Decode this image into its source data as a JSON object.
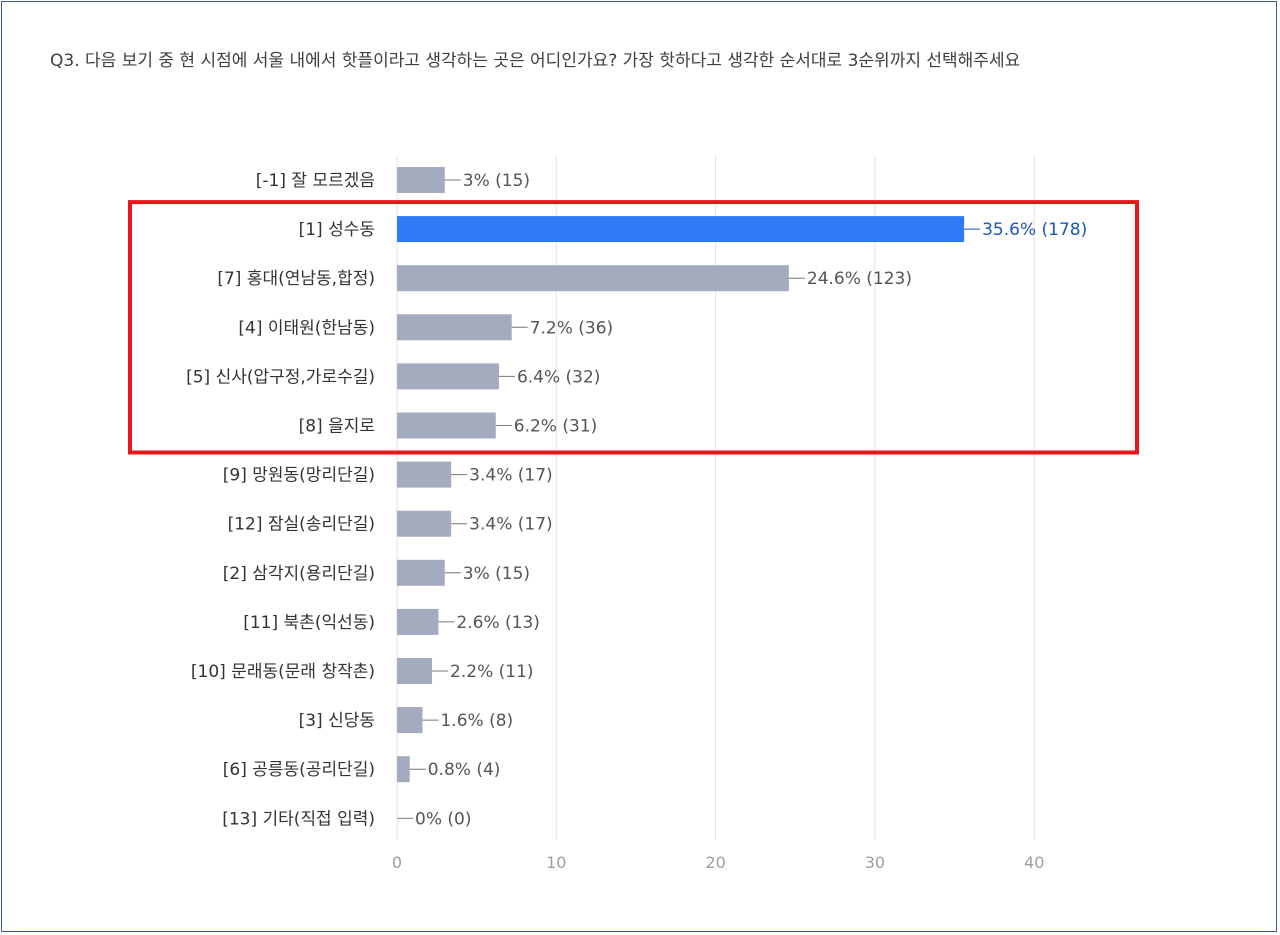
{
  "question": "Q3. 다음 보기 중 현 시점에 서울 내에서 핫플이라고 생각하는 곳은 어디인가요? 가장 핫하다고 생각한 순서대로 3순위까지 선택해주세요",
  "colors": {
    "bar": "#a5abbe",
    "highlight_bar": "#2f7bf5",
    "highlight_box": "#e8161b",
    "grid": "#e3e3e3"
  },
  "chart_data": {
    "type": "bar",
    "orientation": "horizontal",
    "categories": [
      "[-1] 잘 모르겠음",
      "[1] 성수동",
      "[7] 홍대(연남동,합정)",
      "[4] 이태원(한남동)",
      "[5] 신사(압구정,가로수길)",
      "[8] 을지로",
      "[9] 망원동(망리단길)",
      "[12] 잠실(송리단길)",
      "[2] 삼각지(용리단길)",
      "[11] 북촌(익선동)",
      "[10] 문래동(문래 창작촌)",
      "[3] 신당동",
      "[6] 공릉동(공리단길)",
      "[13] 기타(직접 입력)"
    ],
    "values": [
      3,
      35.6,
      24.6,
      7.2,
      6.4,
      6.2,
      3.4,
      3.4,
      3,
      2.6,
      2.2,
      1.6,
      0.8,
      0
    ],
    "value_labels": [
      "3% (15)",
      "35.6% (178)",
      "24.6% (123)",
      "7.2% (36)",
      "6.4% (32)",
      "6.2% (31)",
      "3.4% (17)",
      "3.4% (17)",
      "3% (15)",
      "2.6% (13)",
      "2.2% (11)",
      "1.6% (8)",
      "0.8% (4)",
      "0% (0)"
    ],
    "highlighted_category": 1,
    "boxed_categories": [
      1,
      2,
      3,
      4,
      5
    ],
    "xlim": [
      0,
      48
    ],
    "xticks": [
      "0",
      "10",
      "20",
      "30",
      "40"
    ],
    "grid": true
  }
}
